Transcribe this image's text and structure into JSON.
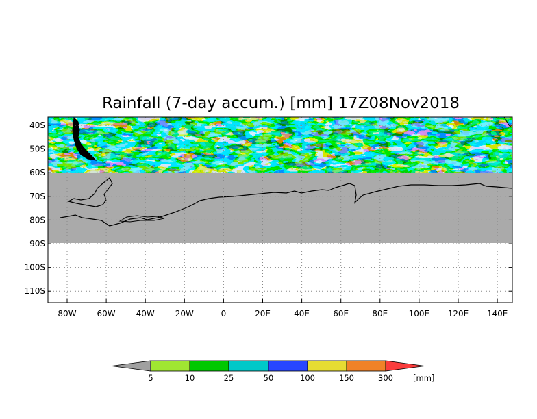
{
  "title": "Rainfall (7-day accum.) [mm] 17Z08Nov2018",
  "map": {
    "lat_labels": [
      "40S",
      "50S",
      "60S",
      "70S",
      "80S",
      "90S",
      "100S",
      "110S"
    ],
    "lon_labels": [
      "80W",
      "60W",
      "40W",
      "20W",
      "0",
      "20E",
      "40E",
      "60E",
      "80E",
      "100E",
      "120E",
      "140E"
    ],
    "no_data_color": "#aaaaaa",
    "data_extent": "37S to 60S",
    "grid": "dotted"
  },
  "colorbar": {
    "thresholds": [
      "5",
      "10",
      "25",
      "50",
      "100",
      "150",
      "300"
    ],
    "unit": "[mm]",
    "colors": [
      "#a0a0a0",
      "#a0e632",
      "#00c800",
      "#00c8c8",
      "#2846ff",
      "#e6dc32",
      "#f08228",
      "#fa3c3c"
    ]
  }
}
